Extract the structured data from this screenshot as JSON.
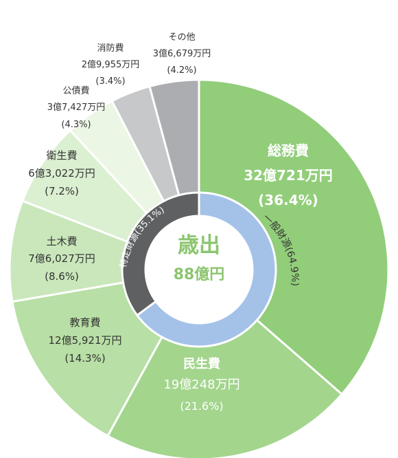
{
  "chart_data": {
    "type": "pie",
    "title": "",
    "center_label": {
      "title": "歳出",
      "value": "88億円"
    },
    "categories": [
      "総務費",
      "民生費",
      "教育費",
      "土木費",
      "衛生費",
      "公債費",
      "消防費",
      "その他"
    ],
    "values": [
      36.4,
      21.6,
      14.3,
      8.6,
      7.2,
      4.3,
      3.4,
      4.2
    ],
    "slices": [
      {
        "name": "総務費",
        "amount": "32億721万円",
        "percent": "(36.4%)",
        "value": 36.4,
        "color": "#92cd7a",
        "label_color": "#ffffff"
      },
      {
        "name": "民生費",
        "amount": "19億248万円",
        "percent": "(21.6%)",
        "value": 21.6,
        "color": "#a3d58d",
        "label_color": "#ffffff"
      },
      {
        "name": "教育費",
        "amount": "12億5,921万円",
        "percent": "(14.3%)",
        "value": 14.3,
        "color": "#b8dfa5",
        "label_color": "#333333"
      },
      {
        "name": "土木費",
        "amount": "7億6,027万円",
        "percent": "(8.6%)",
        "value": 8.6,
        "color": "#c9e7bb",
        "label_color": "#333333"
      },
      {
        "name": "衛生費",
        "amount": "6億3,022万円",
        "percent": "(7.2%)",
        "value": 7.2,
        "color": "#dbefd1",
        "label_color": "#333333"
      },
      {
        "name": "公債費",
        "amount": "3億7,427万円",
        "percent": "(4.3%)",
        "value": 4.3,
        "color": "#ebf6e5",
        "label_color": "#333333"
      },
      {
        "name": "消防費",
        "amount": "2億9,955万円",
        "percent": "(3.4%)",
        "value": 3.4,
        "color": "#c7c8ca",
        "label_color": "#333333"
      },
      {
        "name": "その他",
        "amount": "3億6,679万円",
        "percent": "(4.2%)",
        "value": 4.2,
        "color": "#acadb0",
        "label_color": "#333333"
      }
    ],
    "inner_ring": [
      {
        "label": "一般財源(64.9%)",
        "value": 64.9,
        "color": "#a4c2e8"
      },
      {
        "label": "特定財源(35.1%)",
        "value": 35.1,
        "color": "#5f6062"
      }
    ],
    "colors": {
      "center_text": "#8cc56f",
      "inner_label_general": "#333333",
      "inner_label_specific": "#ffffff"
    }
  }
}
